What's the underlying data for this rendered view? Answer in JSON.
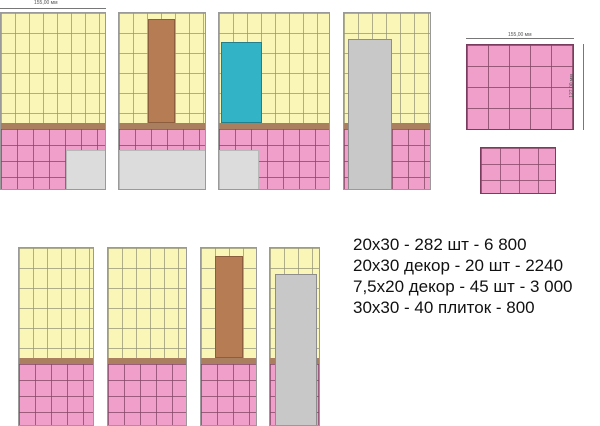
{
  "dimensions": {
    "width_top_left": "155,00 мм",
    "width_panel": "155,00 мм",
    "height_panel": "127,00 мм"
  },
  "colors": {
    "cream_tile": "#faf6b8",
    "pink_tile": "#ef9fc9",
    "border_band": "#a97f5f",
    "brown_insert": "#b67d55",
    "teal_insert": "#33b4c6",
    "gray_fixture": "#dcdcdc"
  },
  "specs": [
    "20х30 - 282 шт - 6 800",
    "20х30 декор - 20 шт - 2240",
    "7,5х20 декор - 45 шт - 3 000",
    "30х30 - 40 плиток - 800"
  ]
}
